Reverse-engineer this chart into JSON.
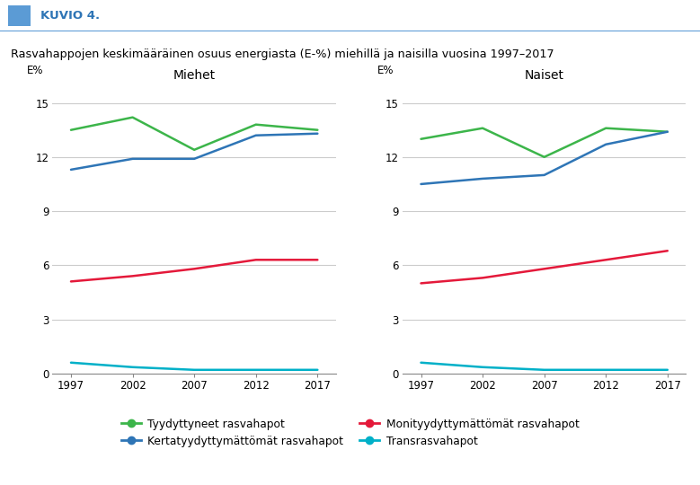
{
  "title": "Rasvahappojen keskimääräinen osuus energiasta (E-%) miehillä ja naisilla vuosina 1997–2017",
  "header": "KUVIO 4.",
  "years": [
    1997,
    2002,
    2007,
    2012,
    2017
  ],
  "men": {
    "title": "Miehet",
    "tyydyttyneet": [
      13.5,
      14.2,
      12.4,
      13.8,
      13.5
    ],
    "kertatyydyttymattömat": [
      11.3,
      11.9,
      11.9,
      13.2,
      13.3
    ],
    "monityydyttymattömat": [
      5.1,
      5.4,
      5.8,
      6.3,
      6.3
    ],
    "transrasvahapot": [
      0.6,
      0.35,
      0.2,
      0.2,
      0.2
    ]
  },
  "women": {
    "title": "Naiset",
    "tyydyttyneet": [
      13.0,
      13.6,
      12.0,
      13.6,
      13.4
    ],
    "kertatyydyttymattömat": [
      10.5,
      10.8,
      11.0,
      12.7,
      13.4
    ],
    "monityydyttymattömat": [
      5.0,
      5.3,
      5.8,
      6.3,
      6.8
    ],
    "transrasvahapot": [
      0.6,
      0.35,
      0.2,
      0.2,
      0.2
    ]
  },
  "colors": {
    "tyydyttyneet": "#3cb54a",
    "kertatyydyttymattömat": "#2e75b6",
    "monityydyttymattömat": "#e4193a",
    "transrasvahapot": "#00b0c8"
  },
  "legend_labels": {
    "tyydyttyneet": "Tyydyttyneet rasvahapot",
    "kertatyydyttymattömat": "Kertatyydyttymättömät rasvahapot",
    "monityydyttymattömat": "Monityydyttymättömät rasvahapot",
    "transrasvahapot": "Transrasvahapot"
  },
  "ylim": [
    0,
    16
  ],
  "yticks": [
    0,
    3,
    6,
    9,
    12,
    15
  ],
  "ylabel": "E%",
  "background_color": "#ffffff",
  "grid_color": "#cccccc",
  "header_bg": "#ddeef6",
  "header_line_color": "#5b9bd5"
}
